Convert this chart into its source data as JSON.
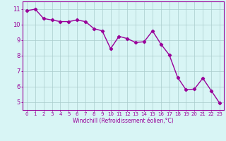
{
  "x": [
    0,
    1,
    2,
    3,
    4,
    5,
    6,
    7,
    8,
    9,
    10,
    11,
    12,
    13,
    14,
    15,
    16,
    17,
    18,
    19,
    20,
    21,
    22,
    23
  ],
  "y": [
    10.9,
    11.0,
    10.4,
    10.3,
    10.2,
    10.2,
    10.3,
    10.2,
    9.75,
    9.6,
    8.45,
    9.25,
    9.1,
    8.85,
    8.9,
    9.6,
    8.75,
    8.05,
    6.6,
    5.8,
    5.85,
    6.55,
    5.75,
    4.95
  ],
  "line_color": "#990099",
  "marker": "D",
  "marker_size": 2.2,
  "line_width": 1.0,
  "bg_color": "#d8f5f5",
  "grid_color": "#aacccc",
  "xlabel": "Windchill (Refroidissement éolien,°C)",
  "xlabel_color": "#990099",
  "tick_color": "#990099",
  "ylim": [
    4.5,
    11.5
  ],
  "xlim": [
    -0.5,
    23.5
  ],
  "yticks": [
    5,
    6,
    7,
    8,
    9,
    10,
    11
  ],
  "xticks": [
    0,
    1,
    2,
    3,
    4,
    5,
    6,
    7,
    8,
    9,
    10,
    11,
    12,
    13,
    14,
    15,
    16,
    17,
    18,
    19,
    20,
    21,
    22,
    23
  ],
  "xtick_labels": [
    "0",
    "1",
    "2",
    "3",
    "4",
    "5",
    "6",
    "7",
    "8",
    "9",
    "10",
    "11",
    "12",
    "13",
    "14",
    "15",
    "16",
    "17",
    "18",
    "19",
    "20",
    "21",
    "22",
    "23"
  ],
  "ytick_fontsize": 6,
  "xtick_fontsize": 5.0,
  "xlabel_fontsize": 5.5
}
